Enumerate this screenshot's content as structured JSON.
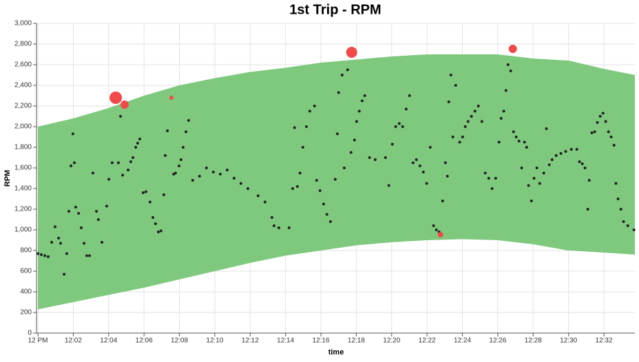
{
  "chart_data": {
    "type": "band-scatter",
    "title": "1st Trip - RPM",
    "x_label": "time",
    "y_label": "RPM",
    "xlim": [
      -0.08,
      33.75
    ],
    "xticks": [
      {
        "value": 0,
        "label": "12 PM"
      },
      {
        "value": 2,
        "label": "12:02"
      },
      {
        "value": 4,
        "label": "12:04"
      },
      {
        "value": 6,
        "label": "12:06"
      },
      {
        "value": 8,
        "label": "12:08"
      },
      {
        "value": 10,
        "label": "12:10"
      },
      {
        "value": 12,
        "label": "12:12"
      },
      {
        "value": 14,
        "label": "12:14"
      },
      {
        "value": 16,
        "label": "12:16"
      },
      {
        "value": 18,
        "label": "12:18"
      },
      {
        "value": 20,
        "label": "12:20"
      },
      {
        "value": 22,
        "label": "12:22"
      },
      {
        "value": 24,
        "label": "12:24"
      },
      {
        "value": 26,
        "label": "12:26"
      },
      {
        "value": 28,
        "label": "12:28"
      },
      {
        "value": 30,
        "label": "12:30"
      },
      {
        "value": 32,
        "label": "12:32"
      }
    ],
    "ylim": [
      0,
      3000
    ],
    "yticks": [
      0,
      200,
      400,
      600,
      800,
      {
        "value": 1000,
        "label": "1,000"
      },
      {
        "value": 1200,
        "label": "1,200"
      },
      {
        "value": 1400,
        "label": "1,400"
      },
      {
        "value": 1600,
        "label": "1,600"
      },
      {
        "value": 1800,
        "label": "1,800"
      },
      {
        "value": 2000,
        "label": "2,000"
      },
      {
        "value": 2200,
        "label": "2,200"
      },
      {
        "value": 2400,
        "label": "2,400"
      },
      {
        "value": 2600,
        "label": "2,600"
      },
      {
        "value": 2800,
        "label": "2,800"
      },
      {
        "value": 3000,
        "label": "3,000"
      }
    ],
    "grid": true,
    "band": {
      "color": "#7fc97f",
      "x": [
        0,
        2,
        4,
        6,
        8,
        10,
        12,
        14,
        16,
        18,
        20,
        22,
        24,
        26,
        28,
        30,
        32,
        33.75
      ],
      "upper": [
        2000,
        2080,
        2180,
        2300,
        2400,
        2470,
        2530,
        2570,
        2620,
        2650,
        2680,
        2700,
        2700,
        2700,
        2660,
        2640,
        2560,
        2500
      ],
      "lower": [
        230,
        300,
        370,
        440,
        520,
        600,
        680,
        750,
        800,
        850,
        880,
        900,
        910,
        900,
        860,
        800,
        780,
        760
      ]
    },
    "points": {
      "color": "#222222",
      "x": [
        0,
        0.19,
        0.39,
        0.58,
        0.78,
        0.97,
        1.17,
        1.28,
        1.48,
        1.63,
        1.75,
        1.87,
        1.98,
        2.06,
        2.14,
        2.3,
        2.45,
        2.61,
        2.76,
        2.92,
        3.11,
        3.31,
        3.42,
        3.62,
        3.89,
        4.01,
        4.2,
        4.55,
        4.67,
        4.79,
        5.1,
        5.25,
        5.37,
        5.53,
        5.64,
        5.76,
        5.95,
        6.11,
        6.34,
        6.5,
        6.65,
        6.81,
        6.96,
        7.12,
        7.2,
        7.32,
        7.67,
        7.78,
        7.98,
        8.09,
        8.21,
        8.37,
        8.52,
        8.75,
        9.14,
        9.53,
        9.92,
        10.31,
        10.7,
        11.09,
        11.48,
        11.87,
        12.45,
        12.84,
        13.23,
        13.35,
        13.62,
        14.2,
        14.4,
        14.51,
        14.67,
        14.82,
        14.98,
        15.18,
        15.37,
        15.64,
        15.76,
        15.95,
        16.15,
        16.34,
        16.54,
        16.81,
        16.93,
        17.0,
        17.2,
        17.32,
        17.51,
        17.7,
        17.9,
        18.02,
        18.17,
        18.33,
        18.48,
        18.75,
        19.07,
        19.65,
        19.84,
        20.04,
        20.23,
        20.43,
        20.62,
        20.82,
        21.01,
        21.21,
        21.4,
        21.6,
        21.79,
        21.98,
        22.18,
        22.37,
        22.53,
        22.68,
        22.88,
        23.04,
        23.15,
        23.23,
        23.35,
        23.46,
        23.62,
        23.85,
        24.01,
        24.16,
        24.32,
        24.51,
        24.71,
        24.9,
        25.1,
        25.29,
        25.49,
        25.68,
        25.88,
        26.07,
        26.19,
        26.34,
        26.46,
        26.58,
        26.73,
        26.89,
        27.04,
        27.2,
        27.35,
        27.51,
        27.63,
        27.74,
        27.9,
        28.05,
        28.21,
        28.37,
        28.6,
        28.75,
        28.91,
        29.07,
        29.3,
        29.57,
        29.84,
        30.16,
        30.47,
        30.62,
        30.78,
        30.93,
        31.09,
        31.17,
        31.32,
        31.48,
        31.63,
        31.79,
        31.95,
        32.1,
        32.26,
        32.41,
        32.57,
        32.68,
        32.8,
        32.96,
        33.11,
        33.35,
        33.7
      ],
      "values": [
        770,
        760,
        750,
        740,
        880,
        1030,
        920,
        870,
        570,
        770,
        1180,
        1620,
        1930,
        1650,
        1220,
        1160,
        1020,
        870,
        750,
        750,
        1550,
        1180,
        1100,
        880,
        1230,
        1490,
        1650,
        1650,
        2100,
        1530,
        1580,
        1660,
        1700,
        1800,
        1840,
        1880,
        1360,
        1370,
        1270,
        1120,
        1060,
        980,
        990,
        1340,
        1720,
        1960,
        1540,
        1550,
        1620,
        1680,
        1800,
        1950,
        2060,
        1480,
        1520,
        1600,
        1560,
        1540,
        1580,
        1500,
        1450,
        1400,
        1330,
        1270,
        1120,
        1040,
        1020,
        1020,
        1400,
        1990,
        1420,
        1550,
        1800,
        2000,
        2150,
        2200,
        1480,
        1380,
        1250,
        1150,
        1080,
        1490,
        1930,
        2330,
        2500,
        1600,
        2550,
        1750,
        1870,
        2050,
        2150,
        2250,
        2300,
        1700,
        1680,
        1700,
        1430,
        1830,
        2000,
        2030,
        2000,
        2170,
        2300,
        1650,
        1680,
        1620,
        1560,
        1450,
        1800,
        1040,
        1000,
        980,
        1280,
        1650,
        1520,
        2240,
        2500,
        1900,
        2400,
        1850,
        1900,
        2000,
        2050,
        2100,
        2150,
        2200,
        2050,
        1550,
        1500,
        1400,
        1500,
        1850,
        2080,
        2150,
        2350,
        2600,
        2540,
        1950,
        1900,
        1860,
        1600,
        1850,
        1800,
        1430,
        1280,
        1500,
        1600,
        1450,
        1550,
        1980,
        1630,
        1680,
        1720,
        1740,
        1760,
        1780,
        1780,
        1660,
        1640,
        1600,
        1200,
        1480,
        1940,
        1950,
        2040,
        2100,
        2130,
        2050,
        1950,
        1900,
        1820,
        1450,
        1300,
        1200,
        1080,
        1040,
        1000
      ]
    },
    "anomalies": {
      "color": "#f04a4a",
      "x": [
        4.4,
        4.9,
        7.55,
        17.74,
        22.76,
        26.85
      ],
      "values": [
        2280,
        2213,
        2280,
        2720,
        953,
        2753
      ],
      "sizes": [
        9,
        6,
        3,
        8,
        4,
        6
      ]
    }
  }
}
